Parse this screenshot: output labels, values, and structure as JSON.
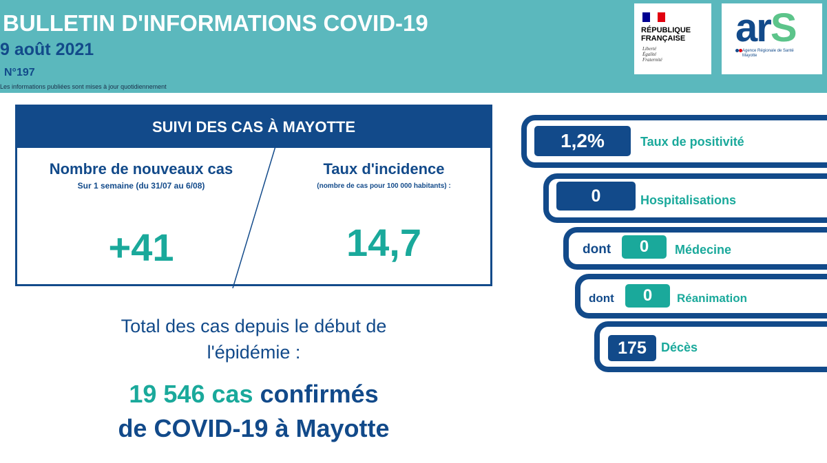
{
  "header": {
    "title": "BULLETIN D'INFORMATIONS COVID-19",
    "date": "9 août 2021",
    "number": "N°197",
    "note": "Les informations publiées sont mises à jour quotidiennement"
  },
  "logos": {
    "republique": {
      "name": "RÉPUBLIQUE\nFRANÇAISE",
      "motto": "Liberté\nÉgalité\nFraternité"
    },
    "ars": {
      "word": "ar",
      "s": "S",
      "subtitle": "Agence Régionale de Santé\nMayotte"
    }
  },
  "cases": {
    "heading": "SUIVI DES CAS À MAYOTTE",
    "new_cases": {
      "title": "Nombre de nouveaux cas",
      "subtitle": "Sur 1 semaine (du 31/07 au 6/08)",
      "value": "+41"
    },
    "incidence": {
      "title": "Taux d'incidence",
      "subtitle": "(nombre de cas pour 100 000 habitants) :",
      "value": "14,7"
    }
  },
  "total": {
    "intro": "Total des cas depuis le début de\nl'épidémie :",
    "count": "19 546 cas",
    "confirmed": "confirmés",
    "line2": "de COVID-19 à Mayotte"
  },
  "indicators": {
    "positivity": {
      "value": "1,2%",
      "label": "Taux de positivité"
    },
    "hospital": {
      "value": "0",
      "label": "Hospitalisations"
    },
    "medecine": {
      "prefix": "dont",
      "value": "0",
      "label": "Médecine"
    },
    "reanimation": {
      "prefix": "dont",
      "value": "0",
      "label": "Réanimation"
    },
    "deces": {
      "value": "175",
      "label": "Décès"
    }
  },
  "colors": {
    "header_bg": "#5bb8bd",
    "navy": "#124a8a",
    "teal": "#1aa99b",
    "flag_blue": "#000091",
    "flag_red": "#e1000f"
  }
}
